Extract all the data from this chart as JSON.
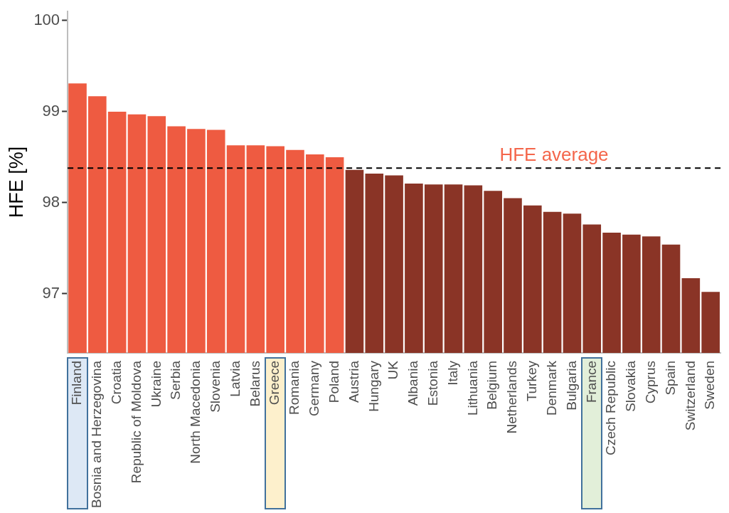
{
  "chart_data": {
    "type": "bar",
    "ylabel": "HFE [%]",
    "categories": [
      "Finland",
      "Bosnia and Herzegovina",
      "Croatia",
      "Republic of Moldova",
      "Ukraine",
      "Serbia",
      "North Macedonia",
      "Slovenia",
      "Latvia",
      "Belarus",
      "Greece",
      "Romania",
      "Germany",
      "Poland",
      "Austria",
      "Hungary",
      "UK",
      "Albania",
      "Estonia",
      "Italy",
      "Lithuania",
      "Belgium",
      "Netherlands",
      "Turkey",
      "Denmark",
      "Bulgaria",
      "France",
      "Czech Republic",
      "Slovakia",
      "Cyprus",
      "Spain",
      "Switzerland",
      "Sweden"
    ],
    "values": [
      99.31,
      99.17,
      99.0,
      98.97,
      98.95,
      98.84,
      98.81,
      98.8,
      98.63,
      98.63,
      98.62,
      98.58,
      98.53,
      98.5,
      98.36,
      98.32,
      98.3,
      98.21,
      98.2,
      98.2,
      98.19,
      98.13,
      98.05,
      97.97,
      97.9,
      97.88,
      97.76,
      97.67,
      97.65,
      97.63,
      97.54,
      97.17,
      97.02
    ],
    "colors": [
      "#ee5b41",
      "#ee5b41",
      "#ee5b41",
      "#ee5b41",
      "#ee5b41",
      "#ee5b41",
      "#ee5b41",
      "#ee5b41",
      "#ee5b41",
      "#ee5b41",
      "#ee5b41",
      "#ee5b41",
      "#ee5b41",
      "#ee5b41",
      "#8a3426",
      "#8a3426",
      "#8a3426",
      "#8a3426",
      "#8a3426",
      "#8a3426",
      "#8a3426",
      "#8a3426",
      "#8a3426",
      "#8a3426",
      "#8a3426",
      "#8a3426",
      "#8a3426",
      "#8a3426",
      "#8a3426",
      "#8a3426",
      "#8a3426",
      "#8a3426",
      "#8a3426"
    ],
    "ylim": [
      96.35,
      100.1
    ],
    "yticks": [
      97,
      98,
      99,
      100
    ],
    "ref_lines": [
      {
        "axis": "y",
        "value": 98.38,
        "label": "HFE average",
        "color": "#000000",
        "line_style": "dashed"
      }
    ],
    "grid": false,
    "legend": false
  }
}
